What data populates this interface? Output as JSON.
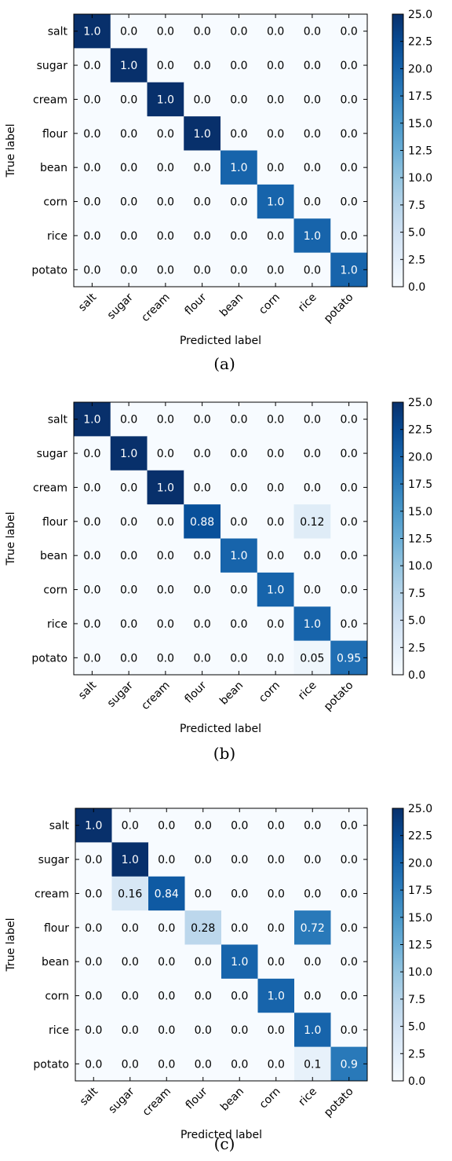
{
  "chart_data": [
    {
      "type": "heatmap",
      "caption": "(a)",
      "xlabel": "Predicted label",
      "ylabel": "True label",
      "labels": [
        "salt",
        "sugar",
        "cream",
        "flour",
        "bean",
        "corn",
        "rice",
        "potato"
      ],
      "values": [
        [
          "1.0",
          "0.0",
          "0.0",
          "0.0",
          "0.0",
          "0.0",
          "0.0",
          "0.0"
        ],
        [
          "0.0",
          "1.0",
          "0.0",
          "0.0",
          "0.0",
          "0.0",
          "0.0",
          "0.0"
        ],
        [
          "0.0",
          "0.0",
          "1.0",
          "0.0",
          "0.0",
          "0.0",
          "0.0",
          "0.0"
        ],
        [
          "0.0",
          "0.0",
          "0.0",
          "1.0",
          "0.0",
          "0.0",
          "0.0",
          "0.0"
        ],
        [
          "0.0",
          "0.0",
          "0.0",
          "0.0",
          "1.0",
          "0.0",
          "0.0",
          "0.0"
        ],
        [
          "0.0",
          "0.0",
          "0.0",
          "0.0",
          "0.0",
          "1.0",
          "0.0",
          "0.0"
        ],
        [
          "0.0",
          "0.0",
          "0.0",
          "0.0",
          "0.0",
          "0.0",
          "1.0",
          "0.0"
        ],
        [
          "0.0",
          "0.0",
          "0.0",
          "0.0",
          "0.0",
          "0.0",
          "0.0",
          "1.0"
        ]
      ],
      "counts": [
        [
          25,
          0,
          0,
          0,
          0,
          0,
          0,
          0
        ],
        [
          0,
          25,
          0,
          0,
          0,
          0,
          0,
          0
        ],
        [
          0,
          0,
          25,
          0,
          0,
          0,
          0,
          0
        ],
        [
          0,
          0,
          0,
          25,
          0,
          0,
          0,
          0
        ],
        [
          0,
          0,
          0,
          0,
          20,
          0,
          0,
          0
        ],
        [
          0,
          0,
          0,
          0,
          0,
          20,
          0,
          0
        ],
        [
          0,
          0,
          0,
          0,
          0,
          0,
          20,
          0
        ],
        [
          0,
          0,
          0,
          0,
          0,
          0,
          0,
          20
        ]
      ],
      "colorbar": {
        "min": 0.0,
        "max": 25.0,
        "ticks": [
          "0.0",
          "2.5",
          "5.0",
          "7.5",
          "10.0",
          "12.5",
          "15.0",
          "17.5",
          "20.0",
          "22.5",
          "25.0"
        ]
      }
    },
    {
      "type": "heatmap",
      "caption": "(b)",
      "xlabel": "Predicted label",
      "ylabel": "True label",
      "labels": [
        "salt",
        "sugar",
        "cream",
        "flour",
        "bean",
        "corn",
        "rice",
        "potato"
      ],
      "values": [
        [
          "1.0",
          "0.0",
          "0.0",
          "0.0",
          "0.0",
          "0.0",
          "0.0",
          "0.0"
        ],
        [
          "0.0",
          "1.0",
          "0.0",
          "0.0",
          "0.0",
          "0.0",
          "0.0",
          "0.0"
        ],
        [
          "0.0",
          "0.0",
          "1.0",
          "0.0",
          "0.0",
          "0.0",
          "0.0",
          "0.0"
        ],
        [
          "0.0",
          "0.0",
          "0.0",
          "0.88",
          "0.0",
          "0.0",
          "0.12",
          "0.0"
        ],
        [
          "0.0",
          "0.0",
          "0.0",
          "0.0",
          "1.0",
          "0.0",
          "0.0",
          "0.0"
        ],
        [
          "0.0",
          "0.0",
          "0.0",
          "0.0",
          "0.0",
          "1.0",
          "0.0",
          "0.0"
        ],
        [
          "0.0",
          "0.0",
          "0.0",
          "0.0",
          "0.0",
          "0.0",
          "1.0",
          "0.0"
        ],
        [
          "0.0",
          "0.0",
          "0.0",
          "0.0",
          "0.0",
          "0.0",
          "0.05",
          "0.95"
        ]
      ],
      "counts": [
        [
          25,
          0,
          0,
          0,
          0,
          0,
          0,
          0
        ],
        [
          0,
          25,
          0,
          0,
          0,
          0,
          0,
          0
        ],
        [
          0,
          0,
          25,
          0,
          0,
          0,
          0,
          0
        ],
        [
          0,
          0,
          0,
          22,
          0,
          0,
          3,
          0
        ],
        [
          0,
          0,
          0,
          0,
          20,
          0,
          0,
          0
        ],
        [
          0,
          0,
          0,
          0,
          0,
          20,
          0,
          0
        ],
        [
          0,
          0,
          0,
          0,
          0,
          0,
          20,
          0
        ],
        [
          0,
          0,
          0,
          0,
          0,
          0,
          1,
          19
        ]
      ],
      "colorbar": {
        "min": 0.0,
        "max": 25.0,
        "ticks": [
          "0.0",
          "2.5",
          "5.0",
          "7.5",
          "10.0",
          "12.5",
          "15.0",
          "17.5",
          "20.0",
          "22.5",
          "25.0"
        ]
      }
    },
    {
      "type": "heatmap",
      "caption": "(c)",
      "xlabel": "Predicted label",
      "ylabel": "True label",
      "labels": [
        "salt",
        "sugar",
        "cream",
        "flour",
        "bean",
        "corn",
        "rice",
        "potato"
      ],
      "values": [
        [
          "1.0",
          "0.0",
          "0.0",
          "0.0",
          "0.0",
          "0.0",
          "0.0",
          "0.0"
        ],
        [
          "0.0",
          "1.0",
          "0.0",
          "0.0",
          "0.0",
          "0.0",
          "0.0",
          "0.0"
        ],
        [
          "0.0",
          "0.16",
          "0.84",
          "0.0",
          "0.0",
          "0.0",
          "0.0",
          "0.0"
        ],
        [
          "0.0",
          "0.0",
          "0.0",
          "0.28",
          "0.0",
          "0.0",
          "0.72",
          "0.0"
        ],
        [
          "0.0",
          "0.0",
          "0.0",
          "0.0",
          "1.0",
          "0.0",
          "0.0",
          "0.0"
        ],
        [
          "0.0",
          "0.0",
          "0.0",
          "0.0",
          "0.0",
          "1.0",
          "0.0",
          "0.0"
        ],
        [
          "0.0",
          "0.0",
          "0.0",
          "0.0",
          "0.0",
          "0.0",
          "1.0",
          "0.0"
        ],
        [
          "0.0",
          "0.0",
          "0.0",
          "0.0",
          "0.0",
          "0.0",
          "0.1",
          "0.9"
        ]
      ],
      "counts": [
        [
          25,
          0,
          0,
          0,
          0,
          0,
          0,
          0
        ],
        [
          0,
          25,
          0,
          0,
          0,
          0,
          0,
          0
        ],
        [
          0,
          4,
          21,
          0,
          0,
          0,
          0,
          0
        ],
        [
          0,
          0,
          0,
          7,
          0,
          0,
          18,
          0
        ],
        [
          0,
          0,
          0,
          0,
          20,
          0,
          0,
          0
        ],
        [
          0,
          0,
          0,
          0,
          0,
          20,
          0,
          0
        ],
        [
          0,
          0,
          0,
          0,
          0,
          0,
          20,
          0
        ],
        [
          0,
          0,
          0,
          0,
          0,
          0,
          2,
          18
        ]
      ],
      "colorbar": {
        "min": 0.0,
        "max": 25.0,
        "ticks": [
          "0.0",
          "2.5",
          "5.0",
          "7.5",
          "10.0",
          "12.5",
          "15.0",
          "17.5",
          "20.0",
          "22.5",
          "25.0"
        ]
      }
    }
  ]
}
